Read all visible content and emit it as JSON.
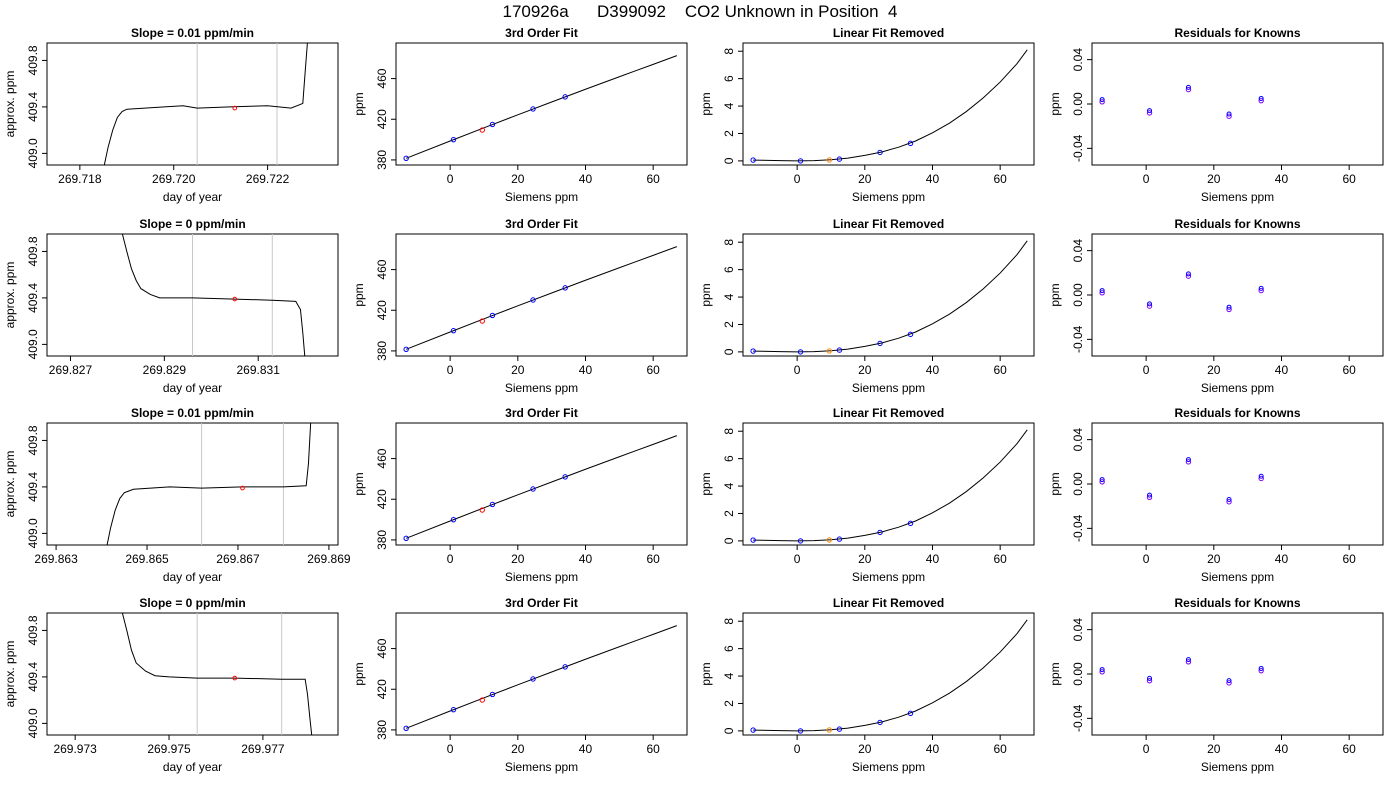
{
  "figure": {
    "title": "170926a      D399092    CO2 Unknown in Position  4"
  },
  "colors": {
    "trace": "#000000",
    "marker_gate": "#c8c8c8",
    "unknown_point": "#ff0000",
    "fit_unknown_point": "#ff8c00",
    "known_point": "#0000ff",
    "residual_point": "#8000ff"
  },
  "rows": [
    {
      "time": {
        "type": "line",
        "title": "Slope =  0.01  ppm/min",
        "xlabel": "day of year",
        "ylabel": "approx. ppm",
        "xlim": [
          269.7173,
          269.7235
        ],
        "ylim": [
          408.9,
          409.95
        ],
        "xticks": [
          "269.718",
          "269.720",
          "269.722"
        ],
        "xticks_v": [
          269.718,
          269.72,
          269.722
        ],
        "yticks": [
          "409.0",
          "409.4",
          "409.8"
        ],
        "yticks_v": [
          409.0,
          409.4,
          409.8
        ],
        "gates": [
          269.7205,
          269.7222
        ],
        "marker": [
          269.7213,
          409.39
        ],
        "trace": [
          [
            269.7185,
            408.86
          ],
          [
            269.7186,
            409.05
          ],
          [
            269.7187,
            409.2
          ],
          [
            269.7188,
            409.31
          ],
          [
            269.7189,
            409.36
          ],
          [
            269.719,
            409.38
          ],
          [
            269.7198,
            409.4
          ],
          [
            269.7202,
            409.41
          ],
          [
            269.7205,
            409.39
          ],
          [
            269.7212,
            409.4
          ],
          [
            269.722,
            409.41
          ],
          [
            269.7225,
            409.39
          ],
          [
            269.72275,
            409.43
          ],
          [
            269.7228,
            409.7
          ],
          [
            269.72285,
            409.96
          ]
        ]
      },
      "fit": {
        "type": "line",
        "title": "3rd Order Fit",
        "xlabel": "Siemens ppm",
        "ylabel": "ppm"
      },
      "lin": {
        "type": "line",
        "title": "Linear Fit Removed",
        "xlabel": "Siemens ppm",
        "ylabel": "ppm"
      },
      "res": {
        "type": "scatter",
        "title": "Residuals for Knowns",
        "xlabel": "Siemens ppm",
        "ylabel": "ppm",
        "points": [
          [
            -13,
            0.002
          ],
          [
            1,
            -0.008
          ],
          [
            12.5,
            0.013
          ],
          [
            24.5,
            -0.011
          ],
          [
            34,
            0.003
          ]
        ]
      }
    },
    {
      "time": {
        "type": "line",
        "title": "Slope =  0  ppm/min",
        "xlabel": "day of year",
        "ylabel": "approx. ppm",
        "xlim": [
          269.8265,
          269.8327
        ],
        "ylim": [
          408.9,
          409.95
        ],
        "xticks": [
          "269.827",
          "269.829",
          "269.831"
        ],
        "xticks_v": [
          269.827,
          269.829,
          269.831
        ],
        "yticks": [
          "409.0",
          "409.4",
          "409.8"
        ],
        "yticks_v": [
          409.0,
          409.4,
          409.8
        ],
        "gates": [
          269.8296,
          269.8313
        ],
        "marker": [
          269.8305,
          409.39
        ],
        "trace": [
          [
            269.8281,
            409.96
          ],
          [
            269.8282,
            409.8
          ],
          [
            269.8283,
            409.65
          ],
          [
            269.8284,
            409.55
          ],
          [
            269.8285,
            409.48
          ],
          [
            269.8287,
            409.43
          ],
          [
            269.8289,
            409.4
          ],
          [
            269.8296,
            409.4
          ],
          [
            269.8305,
            409.39
          ],
          [
            269.8313,
            409.38
          ],
          [
            269.8318,
            409.37
          ],
          [
            269.8319,
            409.3
          ],
          [
            269.83195,
            409.1
          ],
          [
            269.832,
            408.86
          ]
        ]
      },
      "fit": {
        "type": "line",
        "title": "3rd Order Fit",
        "xlabel": "Siemens ppm",
        "ylabel": "ppm"
      },
      "lin": {
        "type": "line",
        "title": "Linear Fit Removed",
        "xlabel": "Siemens ppm",
        "ylabel": "ppm"
      },
      "res": {
        "type": "scatter",
        "title": "Residuals for Knowns",
        "xlabel": "Siemens ppm",
        "ylabel": "ppm",
        "points": [
          [
            -13,
            0.002
          ],
          [
            1,
            -0.01
          ],
          [
            12.5,
            0.017
          ],
          [
            24.5,
            -0.013
          ],
          [
            34,
            0.004
          ]
        ]
      }
    },
    {
      "time": {
        "type": "line",
        "title": "Slope =  0.01  ppm/min",
        "xlabel": "day of year",
        "ylabel": "approx. ppm",
        "xlim": [
          269.8628,
          269.8692
        ],
        "ylim": [
          408.9,
          409.95
        ],
        "xticks": [
          "269.863",
          "269.865",
          "269.867",
          "269.869"
        ],
        "xticks_v": [
          269.863,
          269.865,
          269.867,
          269.869
        ],
        "yticks": [
          "409.0",
          "409.4",
          "409.8"
        ],
        "yticks_v": [
          409.0,
          409.4,
          409.8
        ],
        "gates": [
          269.8662,
          269.868
        ],
        "marker": [
          269.8671,
          409.39
        ],
        "trace": [
          [
            269.8641,
            408.86
          ],
          [
            269.8642,
            409.05
          ],
          [
            269.8643,
            409.2
          ],
          [
            269.8644,
            409.3
          ],
          [
            269.8645,
            409.35
          ],
          [
            269.8647,
            409.38
          ],
          [
            269.8655,
            409.4
          ],
          [
            269.8662,
            409.39
          ],
          [
            269.8671,
            409.4
          ],
          [
            269.868,
            409.4
          ],
          [
            269.8685,
            409.41
          ],
          [
            269.86855,
            409.6
          ],
          [
            269.8686,
            409.96
          ]
        ]
      },
      "fit": {
        "type": "line",
        "title": "3rd Order Fit",
        "xlabel": "Siemens ppm",
        "ylabel": "ppm"
      },
      "lin": {
        "type": "line",
        "title": "Linear Fit Removed",
        "xlabel": "Siemens ppm",
        "ylabel": "ppm"
      },
      "res": {
        "type": "scatter",
        "title": "Residuals for Knowns",
        "xlabel": "Siemens ppm",
        "ylabel": "ppm",
        "points": [
          [
            -13,
            0.002
          ],
          [
            1,
            -0.012
          ],
          [
            12.5,
            0.02
          ],
          [
            24.5,
            -0.016
          ],
          [
            34,
            0.005
          ]
        ]
      }
    },
    {
      "time": {
        "type": "line",
        "title": "Slope =  0  ppm/min",
        "xlabel": "day of year",
        "ylabel": "approx. ppm",
        "xlim": [
          269.9724,
          269.9786
        ],
        "ylim": [
          408.9,
          409.95
        ],
        "xticks": [
          "269.973",
          "269.975",
          "269.977"
        ],
        "xticks_v": [
          269.973,
          269.975,
          269.977
        ],
        "yticks": [
          "409.0",
          "409.4",
          "409.8"
        ],
        "yticks_v": [
          409.0,
          409.4,
          409.8
        ],
        "gates": [
          269.9756,
          269.9774
        ],
        "marker": [
          269.9764,
          409.39
        ],
        "trace": [
          [
            269.974,
            409.96
          ],
          [
            269.9741,
            409.8
          ],
          [
            269.9742,
            409.63
          ],
          [
            269.9743,
            409.52
          ],
          [
            269.9745,
            409.45
          ],
          [
            269.9747,
            409.41
          ],
          [
            269.975,
            409.4
          ],
          [
            269.9756,
            409.39
          ],
          [
            269.9764,
            409.39
          ],
          [
            269.9774,
            409.38
          ],
          [
            269.9779,
            409.38
          ],
          [
            269.97795,
            409.25
          ],
          [
            269.978,
            409.05
          ],
          [
            269.97805,
            408.86
          ]
        ]
      },
      "fit": {
        "type": "line",
        "title": "3rd Order Fit",
        "xlabel": "Siemens ppm",
        "ylabel": "ppm"
      },
      "lin": {
        "type": "line",
        "title": "Linear Fit Removed",
        "xlabel": "Siemens ppm",
        "ylabel": "ppm"
      },
      "res": {
        "type": "scatter",
        "title": "Residuals for Knowns",
        "xlabel": "Siemens ppm",
        "ylabel": "ppm",
        "points": [
          [
            -13,
            0.002
          ],
          [
            1,
            -0.006
          ],
          [
            12.5,
            0.011
          ],
          [
            24.5,
            -0.008
          ],
          [
            34,
            0.003
          ]
        ]
      }
    }
  ],
  "chart_data": {
    "type": "line",
    "fit_panel": {
      "xlim": [
        -16,
        70
      ],
      "ylim": [
        375,
        495
      ],
      "xticks": [
        "0",
        "20",
        "40",
        "60"
      ],
      "xticks_v": [
        0,
        20,
        40,
        60
      ],
      "yticks": [
        "380",
        "420",
        "460"
      ],
      "yticks_v": [
        380,
        420,
        460
      ],
      "curve": [
        [
          -13,
          381.6
        ],
        [
          0,
          398.6
        ],
        [
          10,
          411.6
        ],
        [
          20,
          424.4
        ],
        [
          30,
          437
        ],
        [
          40,
          449.5
        ],
        [
          50,
          461.8
        ],
        [
          60,
          474
        ],
        [
          67,
          482.6
        ]
      ],
      "knowns": [
        [
          -13,
          381.6
        ],
        [
          1,
          399.9
        ],
        [
          12.5,
          414.9
        ],
        [
          24.5,
          430.1
        ],
        [
          34,
          442
        ]
      ],
      "unknown": [
        9.5,
        409.4
      ]
    },
    "lin_panel": {
      "xlim": [
        -16,
        70
      ],
      "ylim": [
        -0.3,
        8.6
      ],
      "xticks": [
        "0",
        "20",
        "40",
        "60"
      ],
      "xticks_v": [
        0,
        20,
        40,
        60
      ],
      "yticks": [
        "0",
        "2",
        "4",
        "6",
        "8"
      ],
      "yticks_v": [
        0,
        2,
        4,
        6,
        8
      ],
      "curve": [
        [
          -13,
          0.06
        ],
        [
          -5,
          0.02
        ],
        [
          0,
          0
        ],
        [
          5,
          0.02
        ],
        [
          10,
          0.08
        ],
        [
          15,
          0.2
        ],
        [
          20,
          0.4
        ],
        [
          25,
          0.65
        ],
        [
          30,
          1.0
        ],
        [
          35,
          1.45
        ],
        [
          40,
          2.05
        ],
        [
          45,
          2.75
        ],
        [
          50,
          3.6
        ],
        [
          55,
          4.6
        ],
        [
          60,
          5.75
        ],
        [
          65,
          7.1
        ],
        [
          68,
          8.1
        ]
      ],
      "knowns": [
        [
          -13,
          0.06
        ],
        [
          1,
          0.0
        ],
        [
          12.5,
          0.13
        ],
        [
          24.5,
          0.62
        ],
        [
          33.5,
          1.28
        ]
      ],
      "unknown": [
        9.5,
        0.07
      ]
    },
    "res_panel": {
      "xlim": [
        -16,
        70
      ],
      "ylim": [
        -0.055,
        0.055
      ],
      "xticks": [
        "0",
        "20",
        "40",
        "60"
      ],
      "xticks_v": [
        0,
        20,
        40,
        60
      ],
      "yticks": [
        "-0.04",
        "0.00",
        "0.04"
      ],
      "yticks_v": [
        -0.04,
        0,
        0.04
      ]
    }
  }
}
